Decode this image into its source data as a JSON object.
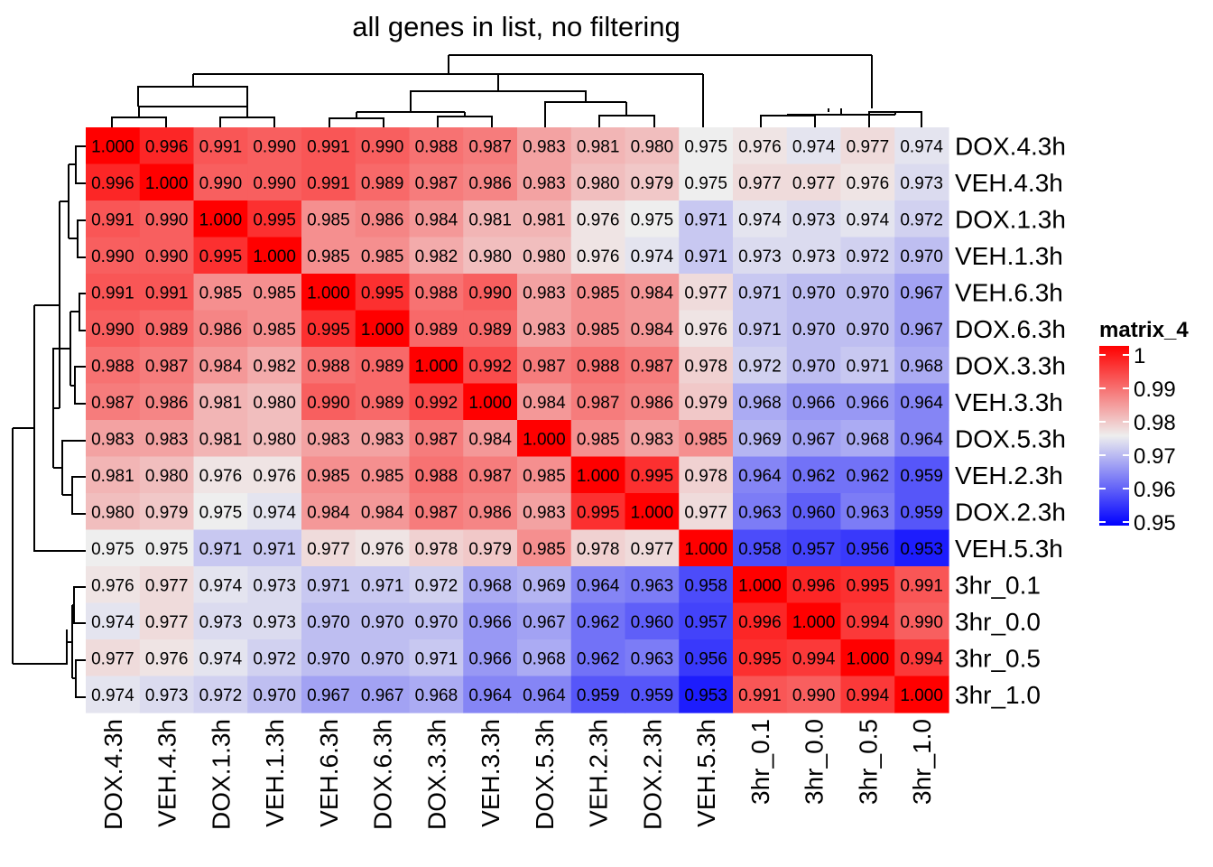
{
  "chart_data": {
    "type": "heatmap",
    "title": "all genes in list, no filtering",
    "legend": {
      "title": "matrix_4",
      "ticks": [
        1,
        0.99,
        0.98,
        0.97,
        0.96,
        0.95
      ],
      "tick_labels": [
        "1",
        "0.99",
        "0.98",
        "0.97",
        "0.96",
        "0.95"
      ],
      "range": [
        0.95,
        1.0
      ],
      "colors": {
        "low": "#0000FF",
        "mid": "#EEEEEE",
        "high": "#FF0000"
      },
      "midpoint": 0.975
    },
    "rows": [
      "DOX.4.3h",
      "VEH.4.3h",
      "DOX.1.3h",
      "VEH.1.3h",
      "VEH.6.3h",
      "DOX.6.3h",
      "DOX.3.3h",
      "VEH.3.3h",
      "DOX.5.3h",
      "VEH.2.3h",
      "DOX.2.3h",
      "VEH.5.3h",
      "3hr_0.1",
      "3hr_0.0",
      "3hr_0.5",
      "3hr_1.0"
    ],
    "columns": [
      "DOX.4.3h",
      "VEH.4.3h",
      "DOX.1.3h",
      "VEH.1.3h",
      "VEH.6.3h",
      "DOX.6.3h",
      "DOX.3.3h",
      "VEH.3.3h",
      "DOX.5.3h",
      "VEH.2.3h",
      "DOX.2.3h",
      "VEH.5.3h",
      "3hr_0.1",
      "3hr_0.0",
      "3hr_0.5",
      "3hr_1.0"
    ],
    "values": [
      [
        1.0,
        0.996,
        0.991,
        0.99,
        0.991,
        0.99,
        0.988,
        0.987,
        0.983,
        0.981,
        0.98,
        0.975,
        0.976,
        0.974,
        0.977,
        0.974
      ],
      [
        0.996,
        1.0,
        0.99,
        0.99,
        0.991,
        0.989,
        0.987,
        0.986,
        0.983,
        0.98,
        0.979,
        0.975,
        0.977,
        0.977,
        0.976,
        0.973
      ],
      [
        0.991,
        0.99,
        1.0,
        0.995,
        0.985,
        0.986,
        0.984,
        0.981,
        0.981,
        0.976,
        0.975,
        0.971,
        0.974,
        0.973,
        0.974,
        0.972
      ],
      [
        0.99,
        0.99,
        0.995,
        1.0,
        0.985,
        0.985,
        0.982,
        0.98,
        0.98,
        0.976,
        0.974,
        0.971,
        0.973,
        0.973,
        0.972,
        0.97
      ],
      [
        0.991,
        0.991,
        0.985,
        0.985,
        1.0,
        0.995,
        0.988,
        0.99,
        0.983,
        0.985,
        0.984,
        0.977,
        0.971,
        0.97,
        0.97,
        0.967
      ],
      [
        0.99,
        0.989,
        0.986,
        0.985,
        0.995,
        1.0,
        0.989,
        0.989,
        0.983,
        0.985,
        0.984,
        0.976,
        0.971,
        0.97,
        0.97,
        0.967
      ],
      [
        0.988,
        0.987,
        0.984,
        0.982,
        0.988,
        0.989,
        1.0,
        0.992,
        0.987,
        0.988,
        0.987,
        0.978,
        0.972,
        0.97,
        0.971,
        0.968
      ],
      [
        0.987,
        0.986,
        0.981,
        0.98,
        0.99,
        0.989,
        0.992,
        1.0,
        0.984,
        0.987,
        0.986,
        0.979,
        0.968,
        0.966,
        0.966,
        0.964
      ],
      [
        0.983,
        0.983,
        0.981,
        0.98,
        0.983,
        0.983,
        0.987,
        0.984,
        1.0,
        0.985,
        0.983,
        0.985,
        0.969,
        0.967,
        0.968,
        0.964
      ],
      [
        0.981,
        0.98,
        0.976,
        0.976,
        0.985,
        0.985,
        0.988,
        0.987,
        0.985,
        1.0,
        0.995,
        0.978,
        0.964,
        0.962,
        0.962,
        0.959
      ],
      [
        0.98,
        0.979,
        0.975,
        0.974,
        0.984,
        0.984,
        0.987,
        0.986,
        0.983,
        0.995,
        1.0,
        0.977,
        0.963,
        0.96,
        0.963,
        0.959
      ],
      [
        0.975,
        0.975,
        0.971,
        0.971,
        0.977,
        0.976,
        0.978,
        0.979,
        0.985,
        0.978,
        0.977,
        1.0,
        0.958,
        0.957,
        0.956,
        0.953
      ],
      [
        0.976,
        0.977,
        0.974,
        0.973,
        0.971,
        0.971,
        0.972,
        0.968,
        0.969,
        0.964,
        0.963,
        0.958,
        1.0,
        0.996,
        0.995,
        0.991
      ],
      [
        0.974,
        0.977,
        0.973,
        0.973,
        0.97,
        0.97,
        0.97,
        0.966,
        0.967,
        0.962,
        0.96,
        0.957,
        0.996,
        1.0,
        0.994,
        0.99
      ],
      [
        0.977,
        0.976,
        0.974,
        0.972,
        0.97,
        0.97,
        0.971,
        0.966,
        0.968,
        0.962,
        0.963,
        0.956,
        0.995,
        0.994,
        1.0,
        0.994
      ],
      [
        0.974,
        0.973,
        0.972,
        0.97,
        0.967,
        0.967,
        0.968,
        0.964,
        0.964,
        0.959,
        0.959,
        0.953,
        0.991,
        0.99,
        0.994,
        1.0
      ]
    ]
  }
}
